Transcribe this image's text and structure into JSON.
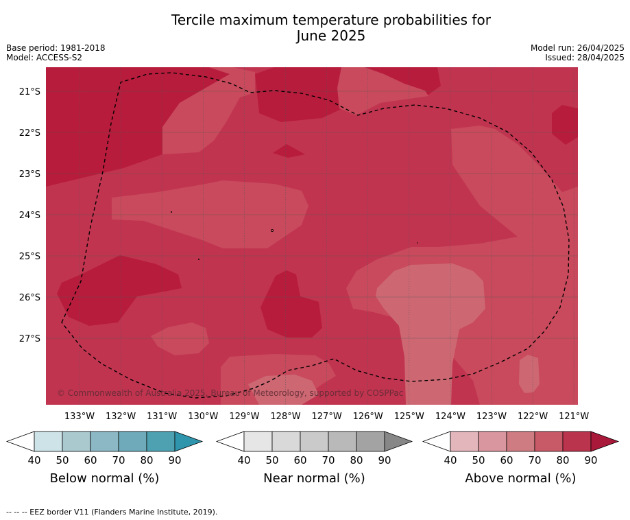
{
  "header": {
    "title_line1": "Tercile maximum temperature probabilities for",
    "title_line2": "June 2025",
    "base_period": "Base period: 1981-2018",
    "model": "Model: ACCESS-S2",
    "model_run": "Model run: 26/04/2025",
    "issued": "Issued: 28/04/2025"
  },
  "map": {
    "lat_labels": [
      "21°S",
      "22°S",
      "23°S",
      "24°S",
      "25°S",
      "26°S",
      "27°S"
    ],
    "lon_labels": [
      "133°W",
      "132°W",
      "131°W",
      "130°W",
      "129°W",
      "128°W",
      "127°W",
      "126°W",
      "125°W",
      "124°W",
      "123°W",
      "122°W",
      "121°W"
    ],
    "copyright": "© Commonwealth of Australia 2025, Bureau of Meteorology, supported by COSPPac",
    "colors": {
      "above_80": "#b71c3c",
      "above_70": "#c13450",
      "above_60": "#c84a5c",
      "above_50": "#cd6873",
      "border": "#000000",
      "grid": "#555555"
    }
  },
  "colorbars": {
    "tick_labels": [
      "40",
      "50",
      "60",
      "70",
      "80",
      "90"
    ],
    "below": {
      "title": "Below normal (%)",
      "colors": [
        "#cde3e8",
        "#aac9cf",
        "#8bb8c4",
        "#6eaab9",
        "#4ea1b1",
        "#2e95ac"
      ]
    },
    "near": {
      "title": "Near normal (%)",
      "colors": [
        "#e6e6e6",
        "#d9d9d9",
        "#cacaca",
        "#b9b9b9",
        "#a3a3a3",
        "#878787"
      ]
    },
    "above": {
      "title": "Above normal (%)",
      "colors": [
        "#e3b6bc",
        "#d9969e",
        "#cf7b82",
        "#c85a68",
        "#b9344c",
        "#a8193a"
      ]
    }
  },
  "footnote": "-- -- -- EEZ border V11 (Flanders Marine Institute, 2019)."
}
